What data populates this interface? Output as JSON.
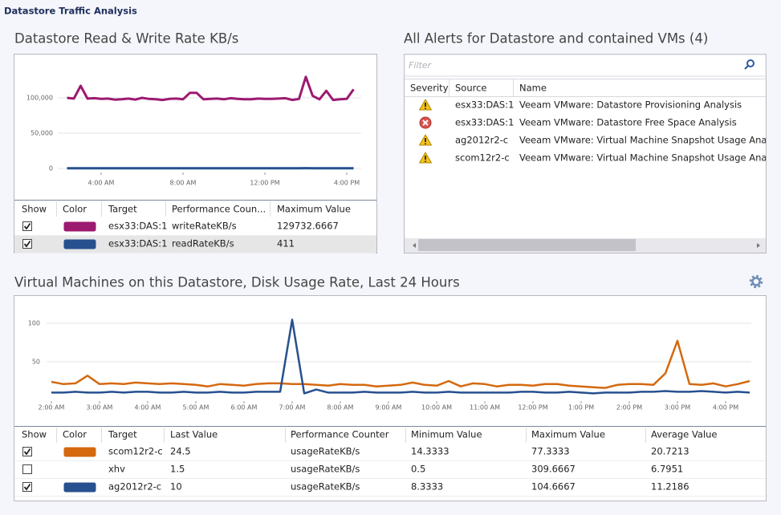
{
  "header": {
    "title": "Datastore Traffic Analysis"
  },
  "chart_data": [
    {
      "type": "line",
      "title": "Datastore Read & Write Rate KB/s",
      "categories": [
        null,
        null,
        null,
        null,
        null,
        "4:00 AM",
        null,
        null,
        null,
        null,
        null,
        null,
        null,
        null,
        null,
        null,
        null,
        "8:00 AM",
        null,
        null,
        null,
        null,
        null,
        null,
        null,
        null,
        null,
        null,
        null,
        "12:00 PM",
        null,
        null,
        null,
        null,
        null,
        null,
        null,
        null,
        null,
        null,
        null,
        "4:00 PM",
        null
      ],
      "ylim": [
        -5000,
        150000
      ],
      "yticks": [
        0,
        {
          "value": 50000,
          "label": "50,000"
        },
        {
          "value": 100000,
          "label": "100,000"
        }
      ],
      "grid": true,
      "columns": [
        "Show",
        "Color",
        "Target",
        "Performance Coun...",
        "Maximum Value"
      ],
      "series": [
        {
          "name": "esx33:DAS:1",
          "counter": "writeRateKB/s",
          "max": 129732.6667,
          "show": true,
          "color": "#9c1a70",
          "values": [
            100000,
            99000,
            117000,
            99000,
            99500,
            98500,
            99000,
            97500,
            98000,
            99000,
            97500,
            100000,
            98500,
            98000,
            97000,
            98500,
            99000,
            98000,
            107000,
            107000,
            98000,
            98500,
            99000,
            98000,
            99500,
            98500,
            98000,
            98000,
            99000,
            98500,
            98500,
            99000,
            99500,
            97000,
            98500,
            129733,
            103000,
            98000,
            110000,
            97000,
            98000,
            98500,
            112000
          ]
        },
        {
          "name": "esx33:DAS:1",
          "counter": "readRateKB/s",
          "max": 411,
          "show": true,
          "color": "#27508f",
          "values": [
            320,
            310,
            330,
            300,
            320,
            310,
            300,
            330,
            320,
            310,
            300,
            320,
            330,
            310,
            300,
            320,
            310,
            330,
            350,
            340,
            320,
            310,
            300,
            320,
            310,
            330,
            320,
            300,
            310,
            320,
            330,
            310,
            300,
            320,
            310,
            411,
            340,
            320,
            330,
            310,
            320,
            300,
            330
          ]
        }
      ]
    },
    {
      "type": "line",
      "title": "Virtual Machines on this Datastore, Disk Usage Rate, Last 24 Hours",
      "categories": [
        "2:00 AM",
        null,
        null,
        null,
        "3:00 AM",
        null,
        null,
        null,
        "4:00 AM",
        null,
        null,
        null,
        "5:00 AM",
        null,
        null,
        null,
        "6:00 AM",
        null,
        null,
        null,
        "7:00 AM",
        null,
        null,
        null,
        "8:00 AM",
        null,
        null,
        null,
        "9:00 AM",
        null,
        null,
        null,
        "10:00 AM",
        null,
        null,
        null,
        "11:00 AM",
        null,
        null,
        null,
        "12:00 PM",
        null,
        null,
        null,
        "1:00 PM",
        null,
        null,
        null,
        "2:00 PM",
        null,
        null,
        null,
        "3:00 PM",
        null,
        null,
        null,
        "4:00 PM",
        null,
        null
      ],
      "ylim": [
        0,
        115
      ],
      "yticks": [
        50,
        100
      ],
      "grid": true,
      "columns": [
        "Show",
        "Color",
        "Target",
        "Last Value",
        "Performance Counter",
        "Minimum Value",
        "Maximum Value",
        "Average Value"
      ],
      "series": [
        {
          "name": "scom12r2-c",
          "last": 24.5,
          "counter": "usageRateKB/s",
          "min": 14.3333,
          "max": 77.3333,
          "avg": 20.7213,
          "show": true,
          "color": "#d4690f",
          "values": [
            24,
            21,
            22,
            32,
            21,
            22,
            21,
            23,
            22,
            21,
            22,
            21,
            20,
            18,
            21,
            20,
            19,
            21,
            22,
            22,
            21,
            21,
            20,
            19,
            21,
            20,
            20,
            18,
            19,
            20,
            23,
            20,
            19,
            25,
            18,
            22,
            21,
            18,
            20,
            20,
            19,
            21,
            21,
            19,
            18,
            17,
            16,
            20,
            21,
            21,
            20,
            35,
            77.3333,
            21,
            20,
            22,
            18,
            21,
            25
          ]
        },
        {
          "name": "xhv",
          "last": 1.5,
          "counter": "usageRateKB/s",
          "min": 0.5,
          "max": 309.6667,
          "avg": 6.7951,
          "show": false,
          "color": "#ffffff"
        },
        {
          "name": "ag2012r2-c",
          "last": 10,
          "counter": "usageRateKB/s",
          "min": 8.3333,
          "max": 104.6667,
          "avg": 11.2186,
          "show": true,
          "color": "#27508f",
          "values": [
            10,
            10,
            11,
            10,
            10,
            11,
            10,
            11,
            11,
            10,
            10,
            11,
            10,
            10,
            11,
            10,
            10,
            11,
            11,
            11,
            104.6667,
            9,
            14,
            10,
            10,
            10,
            11,
            10,
            10,
            10,
            11,
            10,
            10,
            11,
            10,
            10,
            10,
            10,
            10,
            11,
            11,
            10,
            10,
            11,
            10,
            9,
            10,
            10,
            10,
            11,
            11,
            12,
            11,
            11,
            12,
            11,
            10,
            11,
            10
          ]
        }
      ]
    }
  ],
  "alerts": {
    "title": "All Alerts for Datastore and contained VMs (4)",
    "filter": "Filter",
    "columns": [
      "Severity",
      "Source",
      "Name"
    ],
    "rows": [
      {
        "severity": "warning",
        "source": "esx33:DAS:1",
        "name": "Veeam VMware: Datastore Provisioning Analysis"
      },
      {
        "severity": "error",
        "source": "esx33:DAS:1",
        "name": "Veeam VMware: Datastore Free Space Analysis"
      },
      {
        "severity": "warning",
        "source": "ag2012r2-c",
        "name": "Veeam VMware: Virtual Machine Snapshot Usage Analysis"
      },
      {
        "severity": "warning",
        "source": "scom12r2-c",
        "name": "Veeam VMware: Virtual Machine Snapshot Usage Analysis"
      }
    ]
  }
}
